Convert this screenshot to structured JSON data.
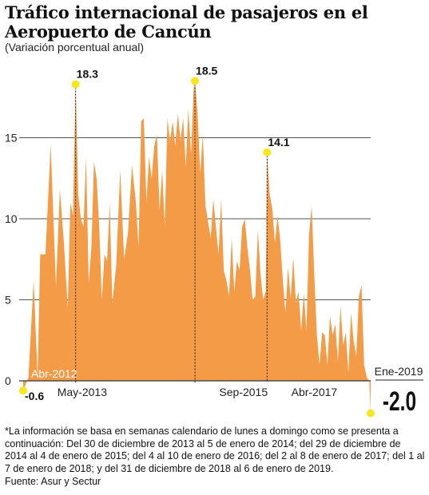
{
  "chart_data": {
    "type": "area",
    "title": "Tráfico internacional de pasajeros en el Aeropuerto de Cancún",
    "subtitle": "(Variación porcentual anual)",
    "ylim": [
      -2.5,
      20
    ],
    "yticks": [
      0,
      5,
      10,
      15
    ],
    "grid": true,
    "colors": {
      "fill": "#f39b47",
      "highlight": "#f8e71c",
      "axis": "#333333",
      "grid": "#555555"
    },
    "xlabels": [
      {
        "label": "Abr-2012",
        "week": 0
      },
      {
        "label": "May-2013",
        "week": 45
      },
      {
        "label": "Sep-2015",
        "week": 168
      },
      {
        "label": "Abr-2017",
        "week": 222
      },
      {
        "label": "Ene-2019",
        "week": 265
      }
    ],
    "annotations": [
      {
        "label": "18.3",
        "week": 40,
        "value": 18.3
      },
      {
        "label": "18.5",
        "week": 131,
        "value": 18.5
      },
      {
        "label": "14.1",
        "week": 186,
        "value": 14.1
      },
      {
        "label": "-0.6",
        "week": 0,
        "value": -0.6
      },
      {
        "label": "-2.0",
        "week": 265,
        "value": -2.0
      }
    ],
    "series": [
      {
        "week": [
          0,
          4,
          8,
          11,
          13,
          17,
          21,
          23,
          25,
          28,
          31,
          34,
          36,
          38,
          40,
          42,
          44,
          46,
          48,
          50,
          52,
          54,
          56,
          58,
          60,
          62,
          64,
          66,
          68,
          71,
          74,
          77,
          80,
          83,
          86,
          88,
          90,
          92,
          94,
          96,
          98,
          100,
          102,
          104,
          106,
          108,
          110,
          112,
          114,
          116,
          118,
          120,
          122,
          124,
          126,
          128,
          130,
          131,
          133,
          135,
          137,
          139,
          141,
          143,
          145,
          147,
          149,
          151,
          153,
          155,
          157,
          159,
          161,
          163,
          165,
          167,
          169,
          171,
          173,
          175,
          177,
          179,
          181,
          183,
          185,
          186,
          188,
          190,
          192,
          194,
          196,
          198,
          200,
          202,
          204,
          206,
          208,
          210,
          212,
          214,
          216,
          218,
          220,
          222,
          224,
          226,
          228,
          230,
          232,
          234,
          236,
          238,
          240,
          242,
          244,
          246,
          248,
          250,
          252,
          254,
          256,
          258,
          260,
          262,
          264,
          265
        ],
        "values": [
          -0.6,
          0.2,
          6.2,
          0.2,
          7.8,
          7.8,
          14.6,
          10.2,
          5.8,
          11.8,
          8.6,
          4.5,
          11.0,
          10.2,
          18.3,
          11.5,
          10.0,
          9.5,
          13.8,
          6.0,
          8.2,
          13.5,
          12.5,
          9.5,
          5.0,
          7.8,
          7.4,
          11.0,
          4.8,
          7.2,
          13.0,
          7.5,
          9.2,
          13.3,
          11.0,
          8.2,
          16.0,
          16.2,
          11.0,
          13.8,
          12.5,
          14.5,
          15.2,
          10.5,
          13.0,
          9.5,
          16.2,
          14.8,
          16.0,
          14.5,
          16.5,
          14.8,
          16.2,
          13.2,
          16.8,
          14.0,
          18.0,
          18.5,
          16.5,
          12.8,
          15.2,
          10.8,
          9.8,
          8.8,
          11.2,
          9.5,
          7.8,
          11.2,
          6.8,
          6.2,
          5.2,
          8.8,
          5.5,
          7.4,
          6.8,
          9.5,
          10.0,
          8.2,
          6.8,
          5.0,
          5.2,
          9.3,
          6.6,
          5.0,
          5.5,
          14.1,
          11.5,
          10.6,
          8.5,
          10.2,
          8.7,
          6.2,
          4.2,
          7.0,
          5.1,
          7.6,
          4.8,
          5.5,
          3.1,
          5.4,
          3.1,
          9.0,
          10.8,
          6.5,
          2.8,
          1.0,
          3.0,
          2.8,
          1.0,
          4.0,
          2.8,
          3.5,
          1.2,
          4.6,
          2.2,
          3.0,
          0.5,
          4.2,
          2.5,
          1.5,
          5.2,
          5.9,
          1.0,
          0.2,
          0.0,
          -2.0
        ]
      }
    ]
  },
  "notes": {
    "footnote": "*La información se basa en semanas calendario de lunes a domingo como se presenta a continuación: Del 30 de diciembre de 2013 al 5 de enero de 2014; del 29 de diciembre de 2014 al 4 de enero de 2015; del 4 al 10 de enero de 2016; del 2 al 8 de enero de 2017; del 1 al 7 de enero de 2018; y del 31 de diciembre de 2018 al 6 de enero de 2019.",
    "source": "Fuente: Asur y Sectur"
  }
}
